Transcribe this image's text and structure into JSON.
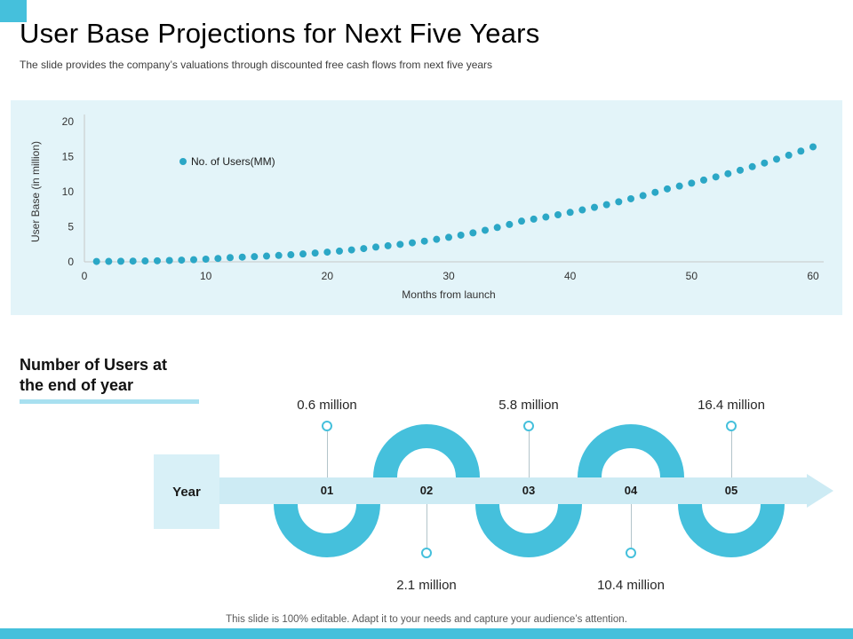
{
  "slide": {
    "title": "User Base Projections for Next Five Years",
    "subtitle": "The slide provides the company’s valuations through discounted free cash flows from next five years",
    "footer": "This slide is 100% editable. Adapt it to your needs and capture your audience’s attention."
  },
  "colors": {
    "accent": "#45C0DC",
    "dot": "#2BA7C6",
    "chart_panel_bg": "#E3F4F9",
    "band_bg": "#CDEBF4",
    "year_box_bg": "#D8F0F7",
    "heading_underline": "#A8E0F0"
  },
  "chart_data": {
    "type": "scatter",
    "legend": [
      "No. of Users(MM)"
    ],
    "xlabel": "Months from launch",
    "ylabel": "User Base (in million)",
    "xlim": [
      0,
      60
    ],
    "ylim": [
      0,
      20
    ],
    "xticks": [
      0,
      10,
      20,
      30,
      40,
      50,
      60
    ],
    "yticks": [
      0,
      5,
      10,
      15,
      20
    ],
    "grid": false,
    "legend_position": "upper-left-inside",
    "series": [
      {
        "name": "No. of Users(MM)",
        "x": [
          1,
          2,
          3,
          4,
          5,
          6,
          7,
          8,
          9,
          10,
          11,
          12,
          13,
          14,
          15,
          16,
          17,
          18,
          19,
          20,
          21,
          22,
          23,
          24,
          25,
          26,
          27,
          28,
          29,
          30,
          31,
          32,
          33,
          34,
          35,
          36,
          37,
          38,
          39,
          40,
          41,
          42,
          43,
          44,
          45,
          46,
          47,
          48,
          49,
          50,
          51,
          52,
          53,
          54,
          55,
          56,
          57,
          58,
          59,
          60
        ],
        "y": [
          0.05,
          0.06,
          0.08,
          0.1,
          0.12,
          0.15,
          0.19,
          0.24,
          0.3,
          0.38,
          0.48,
          0.6,
          0.67,
          0.74,
          0.82,
          0.91,
          1.01,
          1.12,
          1.25,
          1.38,
          1.53,
          1.7,
          1.89,
          2.1,
          2.29,
          2.49,
          2.71,
          2.95,
          3.21,
          3.49,
          3.8,
          4.13,
          4.5,
          4.9,
          5.33,
          5.8,
          6.09,
          6.39,
          6.71,
          7.05,
          7.4,
          7.77,
          8.15,
          8.56,
          8.99,
          9.44,
          9.91,
          10.4,
          10.8,
          11.22,
          11.66,
          12.11,
          12.57,
          13.06,
          13.57,
          14.09,
          14.64,
          15.2,
          15.79,
          16.4
        ]
      }
    ]
  },
  "timeline": {
    "heading": "Number of Users at the end of year",
    "axis_label": "Year",
    "milestones": [
      {
        "year": "01",
        "value": "0.6 million",
        "side": "top"
      },
      {
        "year": "02",
        "value": "2.1 million",
        "side": "bottom"
      },
      {
        "year": "03",
        "value": "5.8 million",
        "side": "top"
      },
      {
        "year": "04",
        "value": "10.4 million",
        "side": "bottom"
      },
      {
        "year": "05",
        "value": "16.4 million",
        "side": "top"
      }
    ]
  }
}
